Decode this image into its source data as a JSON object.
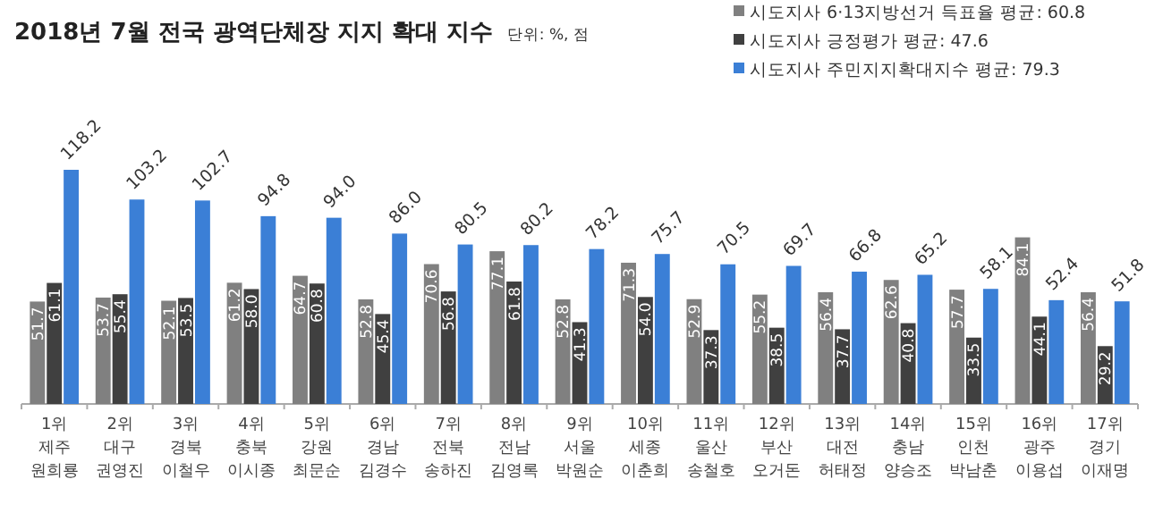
{
  "chart_data": {
    "type": "bar",
    "title": "2018년 7월 전국 광역단체장 지지 확대 지수",
    "subtitle": "단위: %, 점",
    "categories": [
      "1위\n제주\n원희룡",
      "2위\n대구\n권영진",
      "3위\n경북\n이철우",
      "4위\n충북\n이시종",
      "5위\n강원\n최문순",
      "6위\n경남\n김경수",
      "7위\n전북\n송하진",
      "8위\n전남\n김영록",
      "9위\n서울\n박원순",
      "10위\n세종\n이춘희",
      "11위\n울산\n송철호",
      "12위\n부산\n오거돈",
      "13위\n대전\n허태정",
      "14위\n충남\n양승조",
      "15위\n인천\n박남춘",
      "16위\n광주\n이용섭",
      "17위\n경기\n이재명"
    ],
    "series": [
      {
        "name": "시도지사 6·13지방선거 득표율 평균: 60.8",
        "color": "#808080",
        "values": [
          51.7,
          53.7,
          52.1,
          61.2,
          64.7,
          52.8,
          70.6,
          77.1,
          52.8,
          71.3,
          52.9,
          55.2,
          56.4,
          62.6,
          57.7,
          84.1,
          56.4
        ],
        "value_labels": [
          "51.7",
          "53.7",
          "52.1",
          "61.2",
          "64.7",
          "52.8",
          "70.6",
          "77.1",
          "52.8",
          "71.3",
          "52.9",
          "55.2",
          "56.4",
          "62.6",
          "57.7",
          "84.1",
          "56.4"
        ]
      },
      {
        "name": "시도지사 긍정평가 평균: 47.6",
        "color": "#404040",
        "values": [
          61.1,
          55.4,
          53.5,
          58.0,
          60.8,
          45.4,
          56.8,
          61.8,
          41.3,
          54.0,
          37.3,
          38.5,
          37.7,
          40.8,
          33.5,
          44.1,
          29.2
        ],
        "value_labels": [
          "61.1",
          "55.4",
          "53.5",
          "58.0",
          "60.8",
          "45.4",
          "56.8",
          "61.8",
          "41.3",
          "54.0",
          "37.3",
          "38.5",
          "37.7",
          "40.8",
          "33.5",
          "44.1",
          "29.2"
        ]
      },
      {
        "name": "시도지사 주민지지확대지수 평균: 79.3",
        "color": "#3b7fd6",
        "values": [
          118.2,
          103.2,
          102.7,
          94.8,
          94.0,
          86.0,
          80.5,
          80.2,
          78.2,
          75.7,
          70.5,
          69.7,
          66.8,
          65.2,
          58.1,
          52.4,
          51.8
        ],
        "value_labels": [
          "118.2",
          "103.2",
          "102.7",
          "94.8",
          "94.0",
          "86.0",
          "80.5",
          "80.2",
          "78.2",
          "75.7",
          "70.5",
          "69.7",
          "66.8",
          "65.2",
          "58.1",
          "52.4",
          "51.8"
        ]
      }
    ],
    "legend": "top right"
  }
}
